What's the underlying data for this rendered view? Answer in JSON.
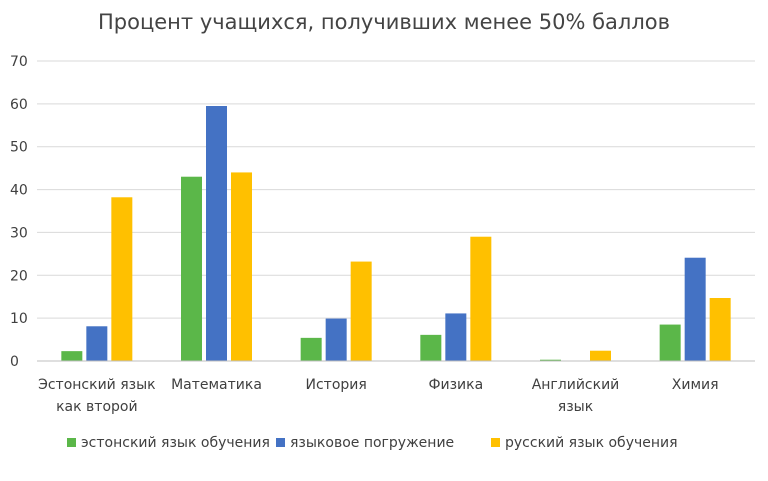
{
  "chart_data": {
    "type": "bar",
    "title": "Процент учащихся, получивших менее 50% баллов",
    "xlabel": "",
    "ylabel": "",
    "ylim": [
      0,
      70
    ],
    "yticks": [
      0,
      10,
      20,
      30,
      40,
      50,
      60,
      70
    ],
    "grid": true,
    "legend_position": "bottom",
    "categories": [
      [
        "Эстонский язык",
        "как второй"
      ],
      [
        "Математика"
      ],
      [
        "История"
      ],
      [
        "Физика"
      ],
      [
        "Английский",
        "язык"
      ],
      [
        "Химия"
      ]
    ],
    "series": [
      {
        "name": "эстонский язык обучения",
        "color": "#5bb749",
        "values": [
          2.3,
          43,
          5.4,
          6.1,
          0.3,
          8.5
        ]
      },
      {
        "name": "языковое погружение",
        "color": "#4472c4",
        "values": [
          8.1,
          59.5,
          9.9,
          11.1,
          0,
          24.1
        ]
      },
      {
        "name": "русский язык обучения",
        "color": "#ffc000",
        "values": [
          38.2,
          44,
          23.2,
          29,
          2.4,
          14.7
        ]
      }
    ]
  }
}
